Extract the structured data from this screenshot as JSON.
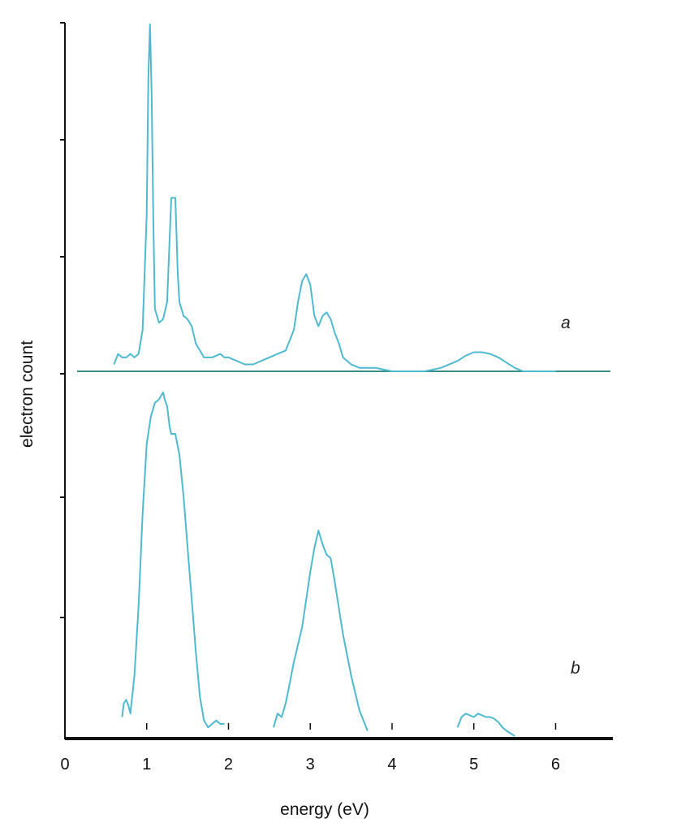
{
  "chart_data": {
    "type": "line",
    "xlabel": "energy (eV)",
    "ylabel": "electron count",
    "xlim": [
      0,
      6.7
    ],
    "x_ticks": [
      "0",
      "1",
      "2",
      "3",
      "4",
      "5",
      "6"
    ],
    "grid": false,
    "colors": {
      "spectrum": "#4fb9cf",
      "baseline_a": "#3d8f86",
      "axis": "#111111",
      "baseline_b": "#111111"
    },
    "panels": [
      {
        "label": "a",
        "ylim": [
          0,
          1
        ],
        "series": [
          {
            "x": [
              0.6,
              0.65,
              0.7,
              0.75,
              0.8,
              0.85,
              0.9,
              0.95,
              1.0,
              1.02,
              1.04,
              1.06,
              1.08,
              1.1,
              1.15,
              1.2,
              1.25,
              1.3,
              1.35,
              1.38,
              1.4,
              1.45,
              1.5,
              1.55,
              1.6,
              1.7,
              1.8,
              1.9,
              1.95,
              2.0,
              2.1,
              2.2,
              2.3,
              2.4,
              2.5,
              2.6,
              2.7,
              2.8,
              2.85,
              2.9,
              2.95,
              3.0,
              3.05,
              3.1,
              3.15,
              3.2,
              3.25,
              3.3,
              3.35,
              3.4,
              3.5,
              3.6,
              3.7,
              3.8,
              3.9,
              4.0,
              4.1,
              4.2,
              4.4,
              4.6,
              4.8,
              4.9,
              5.0,
              5.1,
              5.2,
              5.3,
              5.4,
              5.5,
              5.6,
              5.8,
              6.0
            ],
            "y": [
              0.02,
              0.05,
              0.04,
              0.04,
              0.05,
              0.04,
              0.05,
              0.12,
              0.45,
              0.85,
              1.0,
              0.8,
              0.45,
              0.18,
              0.14,
              0.15,
              0.2,
              0.5,
              0.5,
              0.28,
              0.2,
              0.16,
              0.15,
              0.13,
              0.08,
              0.04,
              0.04,
              0.05,
              0.04,
              0.04,
              0.03,
              0.02,
              0.02,
              0.03,
              0.04,
              0.05,
              0.06,
              0.12,
              0.2,
              0.26,
              0.28,
              0.25,
              0.16,
              0.13,
              0.16,
              0.17,
              0.15,
              0.11,
              0.08,
              0.04,
              0.02,
              0.01,
              0.01,
              0.01,
              0.005,
              0.0,
              0.0,
              0.0,
              0.0,
              0.01,
              0.03,
              0.045,
              0.055,
              0.055,
              0.05,
              0.04,
              0.025,
              0.01,
              0.0,
              0.0,
              0.0
            ]
          }
        ]
      },
      {
        "label": "b",
        "ylim": [
          0,
          1
        ],
        "series": [
          {
            "x": [
              0.7,
              0.72,
              0.75,
              0.78,
              0.8,
              0.85,
              0.9,
              0.95,
              1.0,
              1.05,
              1.1,
              1.15,
              1.2,
              1.22,
              1.25,
              1.28,
              1.3,
              1.35,
              1.4,
              1.45,
              1.5,
              1.55,
              1.6,
              1.65,
              1.7,
              1.75,
              1.8,
              1.85,
              1.9,
              1.95
            ],
            "y": [
              0.06,
              0.1,
              0.11,
              0.09,
              0.07,
              0.18,
              0.38,
              0.65,
              0.85,
              0.93,
              0.97,
              0.98,
              1.0,
              0.98,
              0.96,
              0.9,
              0.88,
              0.88,
              0.82,
              0.7,
              0.55,
              0.4,
              0.25,
              0.12,
              0.05,
              0.03,
              0.04,
              0.05,
              0.04,
              0.04
            ]
          },
          {
            "x": [
              2.55,
              2.6,
              2.65,
              2.7,
              2.75,
              2.8,
              2.9,
              2.95,
              3.0,
              3.05,
              3.1,
              3.15,
              3.2,
              3.25,
              3.3,
              3.4,
              3.5,
              3.6,
              3.7
            ],
            "y": [
              0.03,
              0.07,
              0.06,
              0.1,
              0.16,
              0.22,
              0.32,
              0.4,
              0.48,
              0.55,
              0.6,
              0.56,
              0.53,
              0.52,
              0.45,
              0.3,
              0.18,
              0.08,
              0.02
            ]
          },
          {
            "x": [
              4.8,
              4.85,
              4.9,
              5.0,
              5.05,
              5.1,
              5.15,
              5.2,
              5.25,
              5.3,
              5.35,
              5.4,
              5.5
            ],
            "y": [
              0.03,
              0.06,
              0.07,
              0.06,
              0.07,
              0.065,
              0.06,
              0.06,
              0.055,
              0.045,
              0.03,
              0.02,
              0.005
            ]
          }
        ]
      }
    ]
  }
}
